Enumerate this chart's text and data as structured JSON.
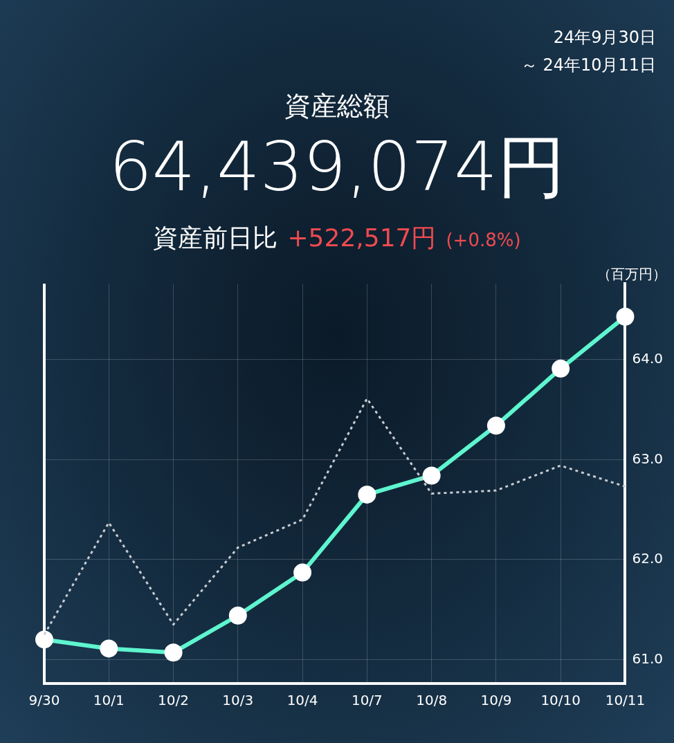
{
  "chart_data": {
    "type": "line",
    "title": "資産総額",
    "subtitle": "64,439,074円",
    "ylabel": "（百万円）",
    "annotations": [
      "24年9月30日",
      "～ 24年10月11日",
      "資産前日比",
      "+522,517円",
      "(+0.8%)"
    ],
    "categories": [
      "9/30",
      "10/1",
      "10/2",
      "10/3",
      "10/4",
      "10/7",
      "10/8",
      "10/9",
      "10/10",
      "10/11"
    ],
    "series": [
      {
        "color": "#5ef5cf",
        "marker": "circle",
        "line_style": "solid",
        "values": [
          61.2,
          61.11,
          61.07,
          61.44,
          61.87,
          62.65,
          62.84,
          63.34,
          63.91,
          64.43
        ]
      },
      {
        "color": "#c8ccd2",
        "marker": "none",
        "line_style": "dotted",
        "values": [
          61.25,
          62.37,
          61.35,
          62.12,
          62.4,
          63.61,
          62.66,
          62.69,
          62.94,
          62.73
        ]
      }
    ],
    "ylim": [
      60.76,
      64.76
    ],
    "yticks": [
      {
        "value": 61,
        "label": "61.0"
      },
      {
        "value": 62,
        "label": "62.0"
      },
      {
        "value": 63,
        "label": "63.0"
      },
      {
        "value": 64,
        "label": "64.0"
      }
    ],
    "grid": true
  }
}
